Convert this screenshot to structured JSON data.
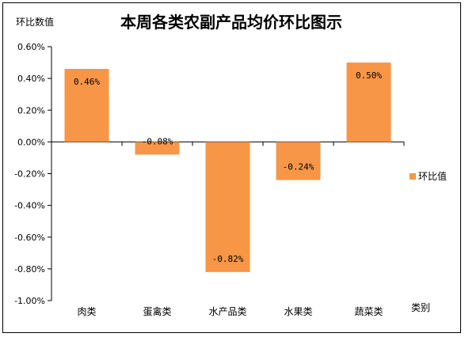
{
  "chart_data": {
    "type": "bar",
    "title": "本周各类农副产品均价环比图示",
    "ylabel": "环比数值",
    "xlabel": "类别",
    "categories": [
      "肉类",
      "蛋禽类",
      "水产品类",
      "水果类",
      "蔬菜类"
    ],
    "series": [
      {
        "name": "环比值",
        "values": [
          0.46,
          -0.08,
          -0.82,
          -0.24,
          0.5
        ]
      }
    ],
    "data_labels": [
      "0.46%",
      "-0.08%",
      "-0.82%",
      "-0.24%",
      "0.50%"
    ],
    "y_ticks": [
      0.6,
      0.4,
      0.2,
      0.0,
      -0.2,
      -0.4,
      -0.6,
      -0.8,
      -1.0
    ],
    "y_tick_labels": [
      "0.60%",
      "0.40%",
      "0.20%",
      "0.00%",
      "-0.20%",
      "-0.40%",
      "-0.60%",
      "-0.80%",
      "-1.00%"
    ],
    "ylim": [
      -1.0,
      0.6
    ],
    "grid": false,
    "legend": "right",
    "colors": {
      "bar": "#f79646",
      "axis": "#000000",
      "text": "#000000"
    }
  }
}
